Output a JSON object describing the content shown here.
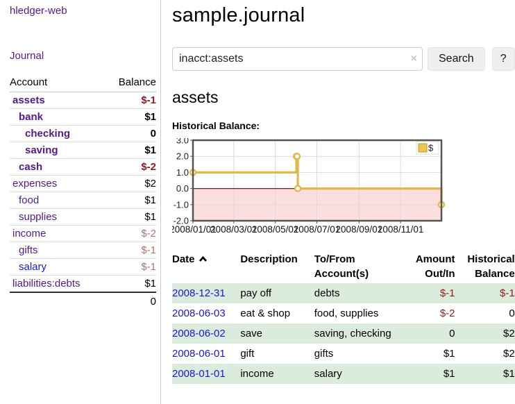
{
  "colors": {
    "link_purple": "#551a8b",
    "link_blue": "#1717dd",
    "negative_red": "#8f1d1d",
    "negative_muted": "#b4736f",
    "row_green": "#dcecdc",
    "chart_gold": "#e3b74a",
    "chart_gold_dark": "#c09a2e",
    "chart_negative_pink": "#fbdede",
    "chart_zero_line": "#8b1010",
    "chart_border": "#555555",
    "chart_grid": "#d9d9d9"
  },
  "brand": "hledger-web",
  "sidebar": {
    "nav_journal": "Journal",
    "accounts_header": {
      "account": "Account",
      "balance": "Balance"
    },
    "accounts": [
      {
        "account": "assets",
        "balance": "$-1",
        "depth": 1,
        "bold": true,
        "negative": true,
        "blue": false
      },
      {
        "account": "bank",
        "balance": "$1",
        "depth": 2,
        "bold": true,
        "negative": false,
        "blue": false
      },
      {
        "account": "checking",
        "balance": "0",
        "depth": 3,
        "bold": true,
        "negative": false,
        "blue": false
      },
      {
        "account": "saving",
        "balance": "$1",
        "depth": 3,
        "bold": true,
        "negative": false,
        "blue": false
      },
      {
        "account": "cash",
        "balance": "$-2",
        "depth": 2,
        "bold": true,
        "negative": true,
        "blue": false
      },
      {
        "account": "expenses",
        "balance": "$2",
        "depth": 1,
        "bold": false,
        "negative": false,
        "blue": false
      },
      {
        "account": "food",
        "balance": "$1",
        "depth": 2,
        "bold": false,
        "negative": false,
        "blue": false
      },
      {
        "account": "supplies",
        "balance": "$1",
        "depth": 2,
        "bold": false,
        "negative": false,
        "blue": false
      },
      {
        "account": "income",
        "balance": "$-2",
        "depth": 1,
        "bold": false,
        "negative": true,
        "blue": false
      },
      {
        "account": "gifts",
        "balance": "$-1",
        "depth": 2,
        "bold": false,
        "negative": true,
        "blue": false
      },
      {
        "account": "salary",
        "balance": "$-1",
        "depth": 2,
        "bold": false,
        "negative": true,
        "blue": true
      },
      {
        "account": "liabilities:debts",
        "balance": "$1",
        "depth": 1,
        "bold": false,
        "negative": false,
        "blue": false
      }
    ],
    "total": "0"
  },
  "main": {
    "title": "sample.journal",
    "search": {
      "value": "inacct:assets",
      "clear_icon": "×",
      "search_button": "Search",
      "help_button": "?"
    },
    "account_title": "assets",
    "chart_label": "Historical Balance:"
  },
  "chart_data": {
    "type": "line",
    "step": true,
    "title": "Historical Balance:",
    "series": [
      {
        "name": "$",
        "points": [
          [
            "2008-01-01",
            1
          ],
          [
            "2008-06-01",
            2
          ],
          [
            "2008-06-02",
            2
          ],
          [
            "2008-06-03",
            0
          ],
          [
            "2008-12-31",
            -1
          ]
        ]
      }
    ],
    "xlim": [
      "2008-01-01",
      "2008-12-31"
    ],
    "ylim": [
      -2,
      3
    ],
    "yticks": [
      "3.0",
      "2.0",
      "1.0",
      "0.0",
      "-1.0",
      "-2.0"
    ],
    "xticks": [
      "2008/01/01",
      "2008/03/01",
      "2008/05/01",
      "2008/07/01",
      "2008/09/01",
      "2008/11/01"
    ],
    "grid": true,
    "legend_position": "top-right",
    "negative_region_shaded": true
  },
  "register": {
    "sort_icon": "chevron-up",
    "headers": [
      "Date",
      "Description",
      "To/From Account(s)",
      "Amount Out/In",
      "Historical Balance"
    ],
    "rows": [
      {
        "date": "2008-12-31",
        "description": "pay off",
        "accounts": "debts",
        "amount": "$-1",
        "amount_negative": true,
        "balance": "$-1",
        "balance_negative": true,
        "green": true
      },
      {
        "date": "2008-06-03",
        "description": "eat & shop",
        "accounts": "food, supplies",
        "amount": "$-2",
        "amount_negative": true,
        "balance": "0",
        "balance_negative": false,
        "green": false
      },
      {
        "date": "2008-06-02",
        "description": "save",
        "accounts": "saving, checking",
        "amount": "0",
        "amount_negative": false,
        "balance": "$2",
        "balance_negative": false,
        "green": true
      },
      {
        "date": "2008-06-01",
        "description": "gift",
        "accounts": "gifts",
        "amount": "$1",
        "amount_negative": false,
        "balance": "$2",
        "balance_negative": false,
        "green": false
      },
      {
        "date": "2008-01-01",
        "description": "income",
        "accounts": "salary",
        "amount": "$1",
        "amount_negative": false,
        "balance": "$1",
        "balance_negative": false,
        "green": true
      }
    ]
  }
}
